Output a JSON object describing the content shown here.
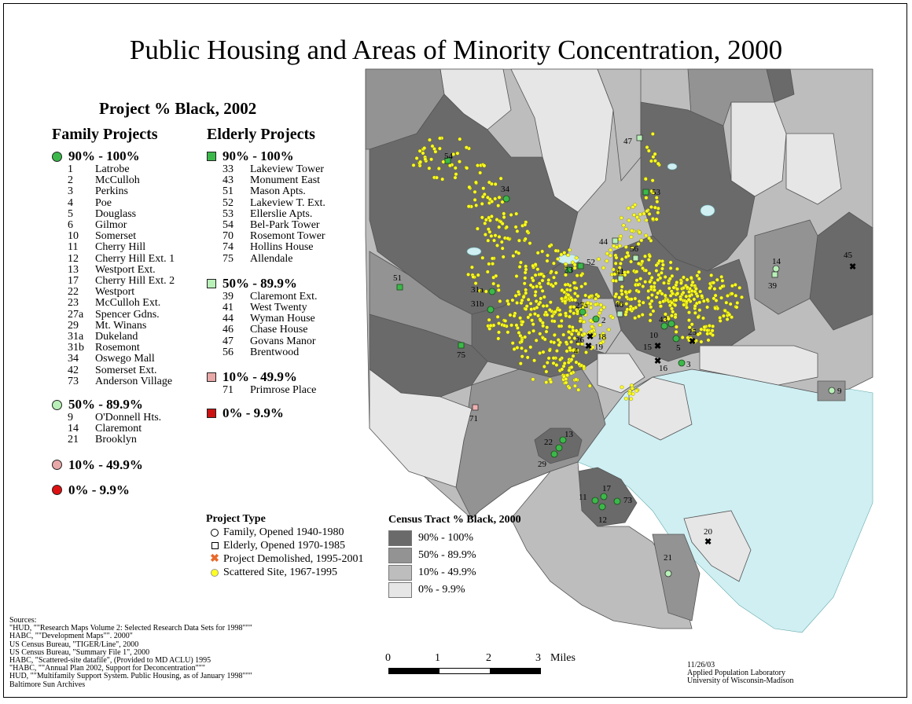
{
  "title": "Public Housing and Areas of Minority Concentration, 2000",
  "legend": {
    "heading": "Project % Black, 2002",
    "family": {
      "heading": "Family Projects",
      "groups": [
        {
          "label": "90% - 100%",
          "color": "#3cb84a",
          "items": [
            {
              "n": "1",
              "name": "Latrobe"
            },
            {
              "n": "2",
              "name": "McCulloh"
            },
            {
              "n": "3",
              "name": "Perkins"
            },
            {
              "n": "4",
              "name": "Poe"
            },
            {
              "n": "5",
              "name": "Douglass"
            },
            {
              "n": "6",
              "name": "Gilmor"
            },
            {
              "n": "10",
              "name": "Somerset"
            },
            {
              "n": "11",
              "name": "Cherry Hill"
            },
            {
              "n": "12",
              "name": "Cherry Hill Ext. 1"
            },
            {
              "n": "13",
              "name": "Westport Ext."
            },
            {
              "n": "17",
              "name": "Cherry Hill Ext. 2"
            },
            {
              "n": "22",
              "name": "Westport"
            },
            {
              "n": "23",
              "name": "McCulloh Ext."
            },
            {
              "n": "27a",
              "name": "Spencer Gdns."
            },
            {
              "n": "29",
              "name": "Mt. Winans"
            },
            {
              "n": "31a",
              "name": "Dukeland"
            },
            {
              "n": "31b",
              "name": "Rosemont"
            },
            {
              "n": "34",
              "name": "Oswego Mall"
            },
            {
              "n": "42",
              "name": "Somerset Ext."
            },
            {
              "n": "73",
              "name": "Anderson Village"
            }
          ]
        },
        {
          "label": "50% - 89.9%",
          "color": "#b8f0b8",
          "items": [
            {
              "n": "9",
              "name": "O'Donnell Hts."
            },
            {
              "n": "14",
              "name": "Claremont"
            },
            {
              "n": "21",
              "name": "Brooklyn"
            }
          ]
        },
        {
          "label": "10% - 49.9%",
          "color": "#e8a8a8",
          "items": []
        },
        {
          "label": "0% - 9.9%",
          "color": "#dd1111",
          "items": []
        }
      ]
    },
    "elderly": {
      "heading": "Elderly Projects",
      "groups": [
        {
          "label": "90% - 100%",
          "color": "#3cb84a",
          "items": [
            {
              "n": "33",
              "name": "Lakeview Tower"
            },
            {
              "n": "43",
              "name": "Monument East"
            },
            {
              "n": "51",
              "name": "Mason Apts."
            },
            {
              "n": "52",
              "name": "Lakeview T. Ext."
            },
            {
              "n": "53",
              "name": "Ellerslie Apts."
            },
            {
              "n": "54",
              "name": "Bel-Park Tower"
            },
            {
              "n": "70",
              "name": "Rosemont Tower"
            },
            {
              "n": "74",
              "name": "Hollins House"
            },
            {
              "n": "75",
              "name": "Allendale"
            }
          ]
        },
        {
          "label": "50% - 89.9%",
          "color": "#b8f0b8",
          "items": [
            {
              "n": "39",
              "name": "Claremont Ext."
            },
            {
              "n": "41",
              "name": "West Twenty"
            },
            {
              "n": "44",
              "name": "Wyman House"
            },
            {
              "n": "46",
              "name": "Chase House"
            },
            {
              "n": "47",
              "name": "Govans Manor"
            },
            {
              "n": "56",
              "name": "Brentwood"
            }
          ]
        },
        {
          "label": "10% - 49.9%",
          "color": "#e8a8a8",
          "items": [
            {
              "n": "71",
              "name": "Primrose Place"
            }
          ]
        },
        {
          "label": "0% - 9.9%",
          "color": "#cc1111",
          "items": []
        }
      ]
    }
  },
  "project_type": {
    "heading": "Project Type",
    "items": [
      {
        "label": "Family, Opened 1940-1980",
        "icon": "circle-outline"
      },
      {
        "label": "Elderly, Opened 1970-1985",
        "icon": "square-outline"
      },
      {
        "label": "Project Demolished, 1995-2001",
        "icon": "x-mark",
        "color": "#e8692a"
      },
      {
        "label": "Scattered Site, 1967-1995",
        "icon": "yellow-dot",
        "color": "#ffff22"
      }
    ]
  },
  "census": {
    "heading": "Census Tract % Black, 2000",
    "classes": [
      {
        "label": "90% - 100%",
        "color": "#6a6a6a"
      },
      {
        "label": "50% - 89.9%",
        "color": "#939393"
      },
      {
        "label": "10% - 49.9%",
        "color": "#bdbdbd"
      },
      {
        "label": "0% - 9.9%",
        "color": "#e6e6e6"
      }
    ]
  },
  "scale": {
    "ticks": [
      "0",
      "1",
      "2",
      "3"
    ],
    "unit": "Miles"
  },
  "sources": {
    "lines": [
      "Sources:",
      "\"HUD, \"\"Research Maps Volume 2: Selected Research Data Sets for 1998\"\"\"",
      "HABC, \"\"Development Maps\"\". 2000\"",
      "US Census Bureau, \"TIGER/Line\", 2000",
      "US Census Bureau, \"Summary File 1\", 2000",
      "HABC, \"Scattered-site datafile\", (Provided to MD ACLU) 1995",
      "\"HABC, \"\"Annual Plan 2002, Support for Deconcentration\"\"\"",
      "HUD, \"\"Multifamily Support System. Public Housing, as of January 1998\"\"\"",
      "Baltimore Sun Archives"
    ]
  },
  "credit": {
    "lines": [
      "11/26/03",
      "Applied Population Laboratory",
      "University of Wisconsin-Madison"
    ]
  },
  "map": {
    "water_color": "#cfeff3",
    "family_markers": [
      {
        "label": "34"
      },
      {
        "label": "31a"
      },
      {
        "label": "31b"
      },
      {
        "label": "2"
      },
      {
        "label": "27a"
      },
      {
        "label": "10"
      },
      {
        "label": "5"
      },
      {
        "label": "3"
      },
      {
        "label": "43"
      },
      {
        "label": "13"
      },
      {
        "label": "22"
      },
      {
        "label": "29"
      },
      {
        "label": "11"
      },
      {
        "label": "17"
      },
      {
        "label": "12"
      },
      {
        "label": "73"
      }
    ],
    "family_light_markers": [
      {
        "label": "14"
      },
      {
        "label": "9"
      },
      {
        "label": "21"
      }
    ],
    "elderly_markers": [
      {
        "label": "54"
      },
      {
        "label": "52"
      },
      {
        "label": "53"
      },
      {
        "label": "51"
      },
      {
        "label": "75"
      },
      {
        "label": "33"
      }
    ],
    "elderly_light_markers": [
      {
        "label": "47"
      },
      {
        "label": "44"
      },
      {
        "label": "56"
      },
      {
        "label": "41"
      },
      {
        "label": "46"
      },
      {
        "label": "39"
      }
    ],
    "elderly_pink_markers": [
      {
        "label": "71"
      }
    ],
    "demolished": [
      {
        "label": "45"
      },
      {
        "label": "15"
      },
      {
        "label": "16"
      },
      {
        "label": "25"
      },
      {
        "label": "18"
      },
      {
        "label": "19"
      },
      {
        "label": "20"
      }
    ],
    "other_labels": [
      "26",
      "4"
    ]
  }
}
